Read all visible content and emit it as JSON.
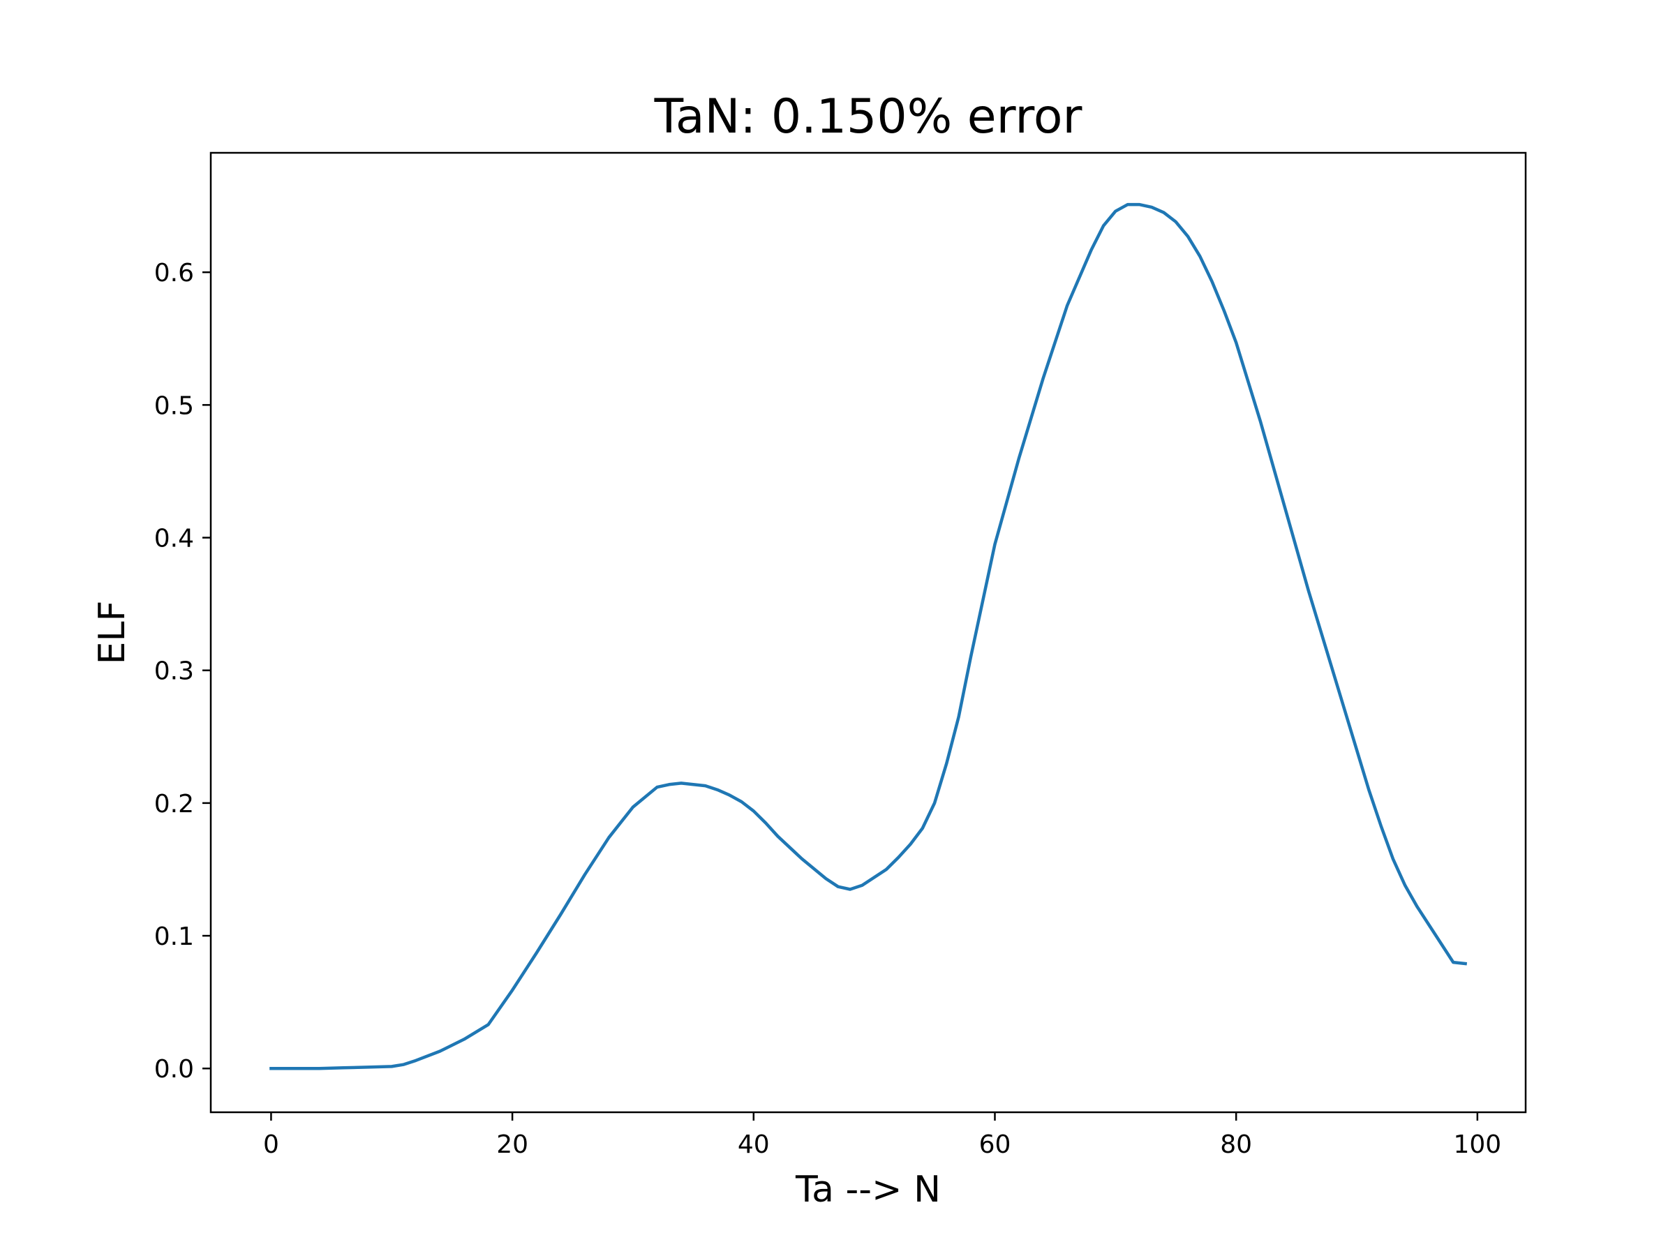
{
  "chart_data": {
    "type": "line",
    "title": "TaN: 0.150% error",
    "xlabel": "Ta --> N",
    "ylabel": "ELF",
    "xlim": [
      -5,
      104
    ],
    "ylim": [
      -0.033,
      0.69
    ],
    "xticks": [
      0,
      20,
      40,
      60,
      80,
      100
    ],
    "yticks": [
      0.0,
      0.1,
      0.2,
      0.3,
      0.4,
      0.5,
      0.6
    ],
    "xtick_labels": [
      "0",
      "20",
      "40",
      "60",
      "80",
      "100"
    ],
    "ytick_labels": [
      "0.0",
      "0.1",
      "0.2",
      "0.3",
      "0.4",
      "0.5",
      "0.6"
    ],
    "grid": false,
    "series": [
      {
        "color": "#1f77b4",
        "x": [
          0,
          2,
          4,
          6,
          8,
          10,
          11,
          12,
          14,
          16,
          18,
          20,
          22,
          24,
          26,
          28,
          30,
          32,
          33,
          34,
          35,
          36,
          37,
          38,
          39,
          40,
          41,
          42,
          44,
          46,
          47,
          48,
          49,
          50,
          51,
          52,
          53,
          54,
          55,
          56,
          57,
          58,
          60,
          62,
          64,
          66,
          68,
          69,
          70,
          71,
          72,
          73,
          74,
          75,
          76,
          77,
          78,
          79,
          80,
          82,
          84,
          86,
          88,
          90,
          91,
          92,
          93,
          94,
          95,
          96,
          97,
          98,
          99
        ],
        "y": [
          0.0,
          0.0,
          0.0,
          0.0005,
          0.001,
          0.0015,
          0.003,
          0.006,
          0.013,
          0.022,
          0.033,
          0.059,
          0.087,
          0.116,
          0.146,
          0.174,
          0.197,
          0.212,
          0.214,
          0.215,
          0.214,
          0.213,
          0.21,
          0.206,
          0.201,
          0.194,
          0.185,
          0.175,
          0.158,
          0.143,
          0.137,
          0.135,
          0.138,
          0.144,
          0.15,
          0.159,
          0.169,
          0.181,
          0.2,
          0.23,
          0.265,
          0.31,
          0.395,
          0.46,
          0.52,
          0.575,
          0.617,
          0.635,
          0.646,
          0.651,
          0.651,
          0.649,
          0.645,
          0.638,
          0.627,
          0.612,
          0.593,
          0.571,
          0.547,
          0.488,
          0.424,
          0.36,
          0.3,
          0.24,
          0.21,
          0.183,
          0.158,
          0.138,
          0.122,
          0.108,
          0.094,
          0.08,
          0.079
        ]
      }
    ]
  }
}
